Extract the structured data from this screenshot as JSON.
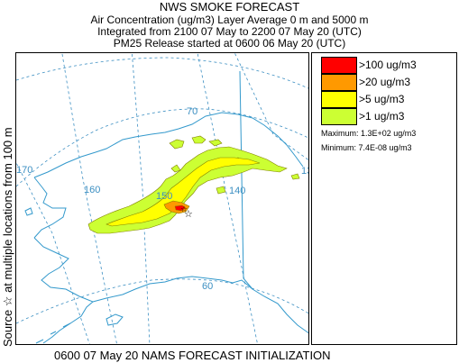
{
  "header": {
    "title": "NWS SMOKE FORECAST",
    "line1": "Air Concentration (ug/m3) Layer Average    0 m and  5000 m",
    "line2": "Integrated from 2100 07 May to 2200 07 May 20 (UTC)",
    "line3": "PM25 Release started at 0600 06 May 20 (UTC)"
  },
  "side_label": "Source ☆  at multiple locations    from   100 m",
  "footer": "0600 07 May 20 NAMS FORECAST INITIALIZATION",
  "map": {
    "graticule_labels": [
      "170",
      "160",
      "150",
      "140",
      "130",
      "70",
      "60"
    ],
    "source_marker": "☆"
  },
  "legend": {
    "items": [
      {
        "label": ">100 ug/m3",
        "color": "#ff0000"
      },
      {
        "label": ">20 ug/m3",
        "color": "#ff9900"
      },
      {
        "label": ">5 ug/m3",
        "color": "#ffff00"
      },
      {
        "label": ">1 ug/m3",
        "color": "#ccff33"
      }
    ],
    "maximum": "Maximum: 1.3E+02 ug/m3",
    "minimum": "Minimum: 7.4E-08 ug/m3"
  },
  "colors": {
    "coast": "#3399cc",
    "graticule": "#3c8fc2",
    "contour_outline": "#808000"
  }
}
